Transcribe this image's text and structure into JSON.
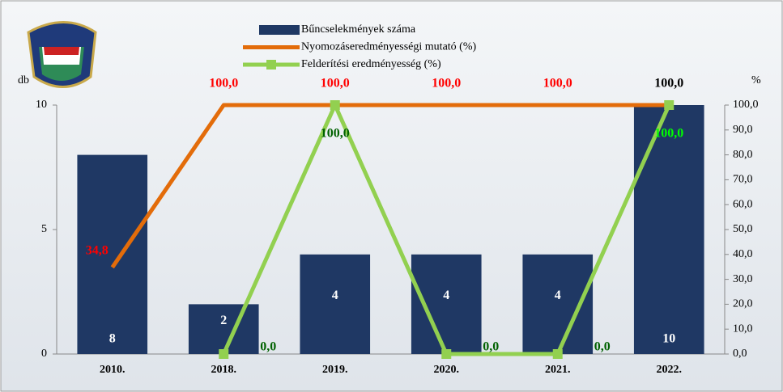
{
  "chart_data": {
    "type": "bar",
    "categories": [
      "2010.",
      "2018.",
      "2019.",
      "2020.",
      "2021.",
      "2022."
    ],
    "y_label": "db",
    "y2_label": "%",
    "ylim": [
      0,
      10
    ],
    "yticks": [
      0,
      5,
      10
    ],
    "y2lim": [
      0,
      100
    ],
    "y2ticks": [
      {
        "value": 0,
        "label": "0,0"
      },
      {
        "value": 10,
        "label": "10,0"
      },
      {
        "value": 20,
        "label": "20,0"
      },
      {
        "value": 30,
        "label": "30,0"
      },
      {
        "value": 40,
        "label": "40,0"
      },
      {
        "value": 50,
        "label": "50,0"
      },
      {
        "value": 60,
        "label": "60,0"
      },
      {
        "value": 70,
        "label": "70,0"
      },
      {
        "value": 80,
        "label": "80,0"
      },
      {
        "value": 90,
        "label": "90,0"
      },
      {
        "value": 100,
        "label": "100,0"
      }
    ],
    "series": [
      {
        "name": "Bűncselekmények száma",
        "type": "bar",
        "color": "#1f3864",
        "values": [
          8,
          2,
          4,
          4,
          4,
          10
        ],
        "label_colors": [
          "#ffffff",
          "#ffffff",
          "#ffffff",
          "#ffffff",
          "#ffffff",
          "#ffffff"
        ]
      },
      {
        "name": "Nyomozáseredményességi mutató (%)",
        "type": "line",
        "axis": "y2",
        "color": "#e36c0a",
        "values": [
          34.8,
          100,
          100,
          100,
          100,
          100
        ],
        "value_labels": [
          "34,8",
          "100,0",
          "100,0",
          "100,0",
          "100,0",
          "100,0"
        ],
        "label_colors": [
          "#ff0000",
          "#ff0000",
          "#ff0000",
          "#ff0000",
          "#ff0000",
          "#000000"
        ]
      },
      {
        "name": "Felderítési eredményesség (%)",
        "type": "line",
        "axis": "y2",
        "color": "#92d050",
        "markers": true,
        "values": [
          null,
          0,
          100,
          0,
          0,
          100
        ],
        "value_labels": [
          null,
          "0,0",
          "100,0",
          "0,0",
          "0,0",
          "100,0"
        ],
        "label_colors": [
          null,
          "#006100",
          "#006100",
          "#006100",
          "#006100",
          "#00ff00"
        ]
      }
    ]
  }
}
